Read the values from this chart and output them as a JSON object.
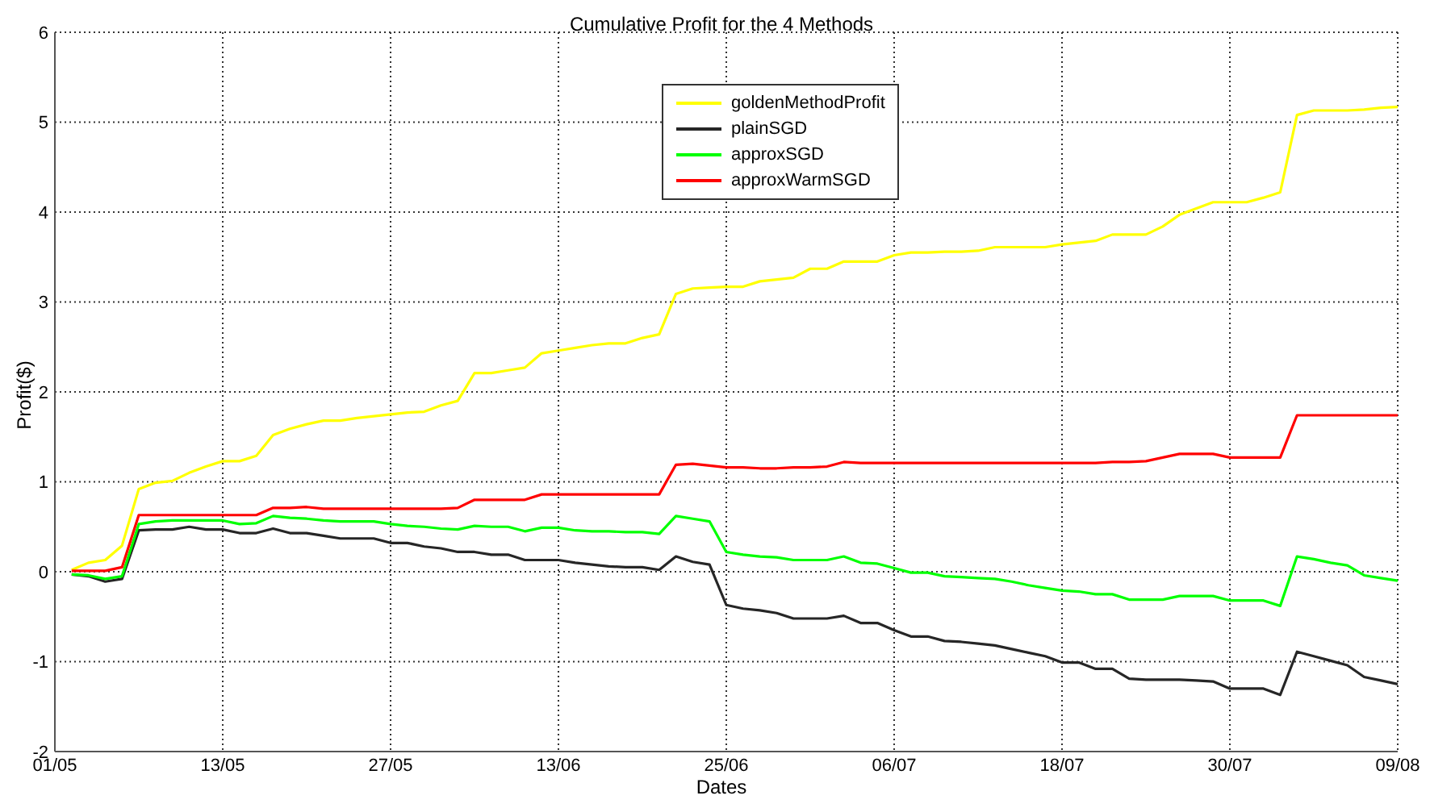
{
  "chart_data": {
    "type": "line",
    "title": "Cumulative Profit for the 4 Methods",
    "xlabel": "Dates",
    "ylabel": "Profit($)",
    "categories": [
      "01/05",
      null,
      null,
      null,
      null,
      null,
      null,
      null,
      null,
      null,
      "13/05",
      null,
      null,
      null,
      null,
      null,
      null,
      null,
      null,
      null,
      "27/05",
      null,
      null,
      null,
      null,
      null,
      null,
      null,
      null,
      null,
      "13/06",
      null,
      null,
      null,
      null,
      null,
      null,
      null,
      null,
      null,
      "25/06",
      null,
      null,
      null,
      null,
      null,
      null,
      null,
      null,
      null,
      "06/07",
      null,
      null,
      null,
      null,
      null,
      null,
      null,
      null,
      null,
      "18/07",
      null,
      null,
      null,
      null,
      null,
      null,
      null,
      null,
      null,
      "30/07",
      null,
      null,
      null,
      null,
      null,
      null,
      null,
      null,
      null,
      "09/08"
    ],
    "ylim": [
      -2,
      6
    ],
    "yticks": [
      -2,
      -1,
      0,
      1,
      2,
      3,
      4,
      5,
      6
    ],
    "grid": true,
    "legend": "top",
    "line_style": "solid",
    "marker": "none",
    "series": [
      {
        "name": "goldenMethodProfit",
        "color": "#ffff00",
        "values": [
          null,
          0.02,
          0.1,
          0.13,
          0.29,
          0.92,
          0.99,
          1.01,
          1.1,
          1.17,
          1.23,
          1.23,
          1.29,
          1.52,
          1.59,
          1.64,
          1.68,
          1.68,
          1.71,
          1.73,
          1.75,
          1.77,
          1.78,
          1.85,
          1.9,
          2.21,
          2.21,
          2.24,
          2.27,
          2.43,
          2.46,
          2.49,
          2.52,
          2.54,
          2.54,
          2.6,
          2.64,
          3.09,
          3.15,
          3.16,
          3.17,
          3.17,
          3.23,
          3.25,
          3.27,
          3.37,
          3.37,
          3.45,
          3.45,
          3.45,
          3.52,
          3.55,
          3.55,
          3.56,
          3.56,
          3.57,
          3.61,
          3.61,
          3.61,
          3.61,
          3.64,
          3.66,
          3.68,
          3.75,
          3.75,
          3.75,
          3.84,
          3.97,
          4.04,
          4.11,
          4.11,
          4.11,
          4.16,
          4.22,
          5.08,
          5.13,
          5.13,
          5.13,
          5.14,
          5.16,
          5.17
        ]
      },
      {
        "name": "plainSGD",
        "color": "#262626",
        "values": [
          null,
          -0.03,
          -0.05,
          -0.11,
          -0.08,
          0.46,
          0.47,
          0.47,
          0.5,
          0.47,
          0.47,
          0.43,
          0.43,
          0.48,
          0.43,
          0.43,
          0.4,
          0.37,
          0.37,
          0.37,
          0.32,
          0.32,
          0.28,
          0.26,
          0.22,
          0.22,
          0.19,
          0.19,
          0.13,
          0.13,
          0.13,
          0.1,
          0.08,
          0.06,
          0.05,
          0.05,
          0.02,
          0.17,
          0.11,
          0.08,
          -0.37,
          -0.41,
          -0.43,
          -0.46,
          -0.52,
          -0.52,
          -0.52,
          -0.49,
          -0.57,
          -0.57,
          -0.65,
          -0.72,
          -0.72,
          -0.77,
          -0.78,
          -0.8,
          -0.82,
          -0.86,
          -0.9,
          -0.94,
          -1.01,
          -1.01,
          -1.08,
          -1.08,
          -1.19,
          -1.2,
          -1.2,
          -1.2,
          -1.21,
          -1.22,
          -1.3,
          -1.3,
          -1.3,
          -1.37,
          -0.89,
          -0.94,
          -0.99,
          -1.04,
          -1.17,
          -1.21,
          -1.25
        ]
      },
      {
        "name": "approxSGD",
        "color": "#00ff00",
        "values": [
          null,
          -0.03,
          -0.04,
          -0.08,
          -0.05,
          0.53,
          0.56,
          0.57,
          0.57,
          0.57,
          0.57,
          0.53,
          0.54,
          0.62,
          0.6,
          0.59,
          0.57,
          0.56,
          0.56,
          0.56,
          0.53,
          0.51,
          0.5,
          0.48,
          0.47,
          0.51,
          0.5,
          0.5,
          0.45,
          0.49,
          0.49,
          0.46,
          0.45,
          0.45,
          0.44,
          0.44,
          0.42,
          0.62,
          0.59,
          0.56,
          0.22,
          0.19,
          0.17,
          0.16,
          0.13,
          0.13,
          0.13,
          0.17,
          0.1,
          0.09,
          0.04,
          -0.01,
          -0.01,
          -0.05,
          -0.06,
          -0.07,
          -0.08,
          -0.11,
          -0.15,
          -0.18,
          -0.21,
          -0.22,
          -0.25,
          -0.25,
          -0.31,
          -0.31,
          -0.31,
          -0.27,
          -0.27,
          -0.27,
          -0.32,
          -0.32,
          -0.32,
          -0.38,
          0.17,
          0.14,
          0.1,
          0.07,
          -0.04,
          -0.07,
          -0.1
        ]
      },
      {
        "name": "approxWarmSGD",
        "color": "#ff0000",
        "values": [
          null,
          0.01,
          0.01,
          0.01,
          0.05,
          0.63,
          0.63,
          0.63,
          0.63,
          0.63,
          0.63,
          0.63,
          0.63,
          0.71,
          0.71,
          0.72,
          0.7,
          0.7,
          0.7,
          0.7,
          0.7,
          0.7,
          0.7,
          0.7,
          0.71,
          0.8,
          0.8,
          0.8,
          0.8,
          0.86,
          0.86,
          0.86,
          0.86,
          0.86,
          0.86,
          0.86,
          0.86,
          1.19,
          1.2,
          1.18,
          1.16,
          1.16,
          1.15,
          1.15,
          1.16,
          1.16,
          1.17,
          1.22,
          1.21,
          1.21,
          1.21,
          1.21,
          1.21,
          1.21,
          1.21,
          1.21,
          1.21,
          1.21,
          1.21,
          1.21,
          1.21,
          1.21,
          1.21,
          1.22,
          1.22,
          1.23,
          1.27,
          1.31,
          1.31,
          1.31,
          1.27,
          1.27,
          1.27,
          1.27,
          1.74,
          1.74,
          1.74,
          1.74,
          1.74,
          1.74,
          1.74
        ]
      }
    ]
  }
}
